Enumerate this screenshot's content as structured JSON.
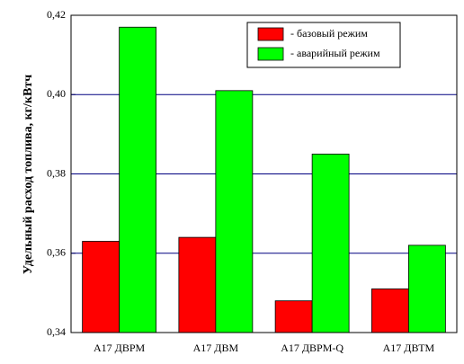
{
  "chart_data": {
    "type": "bar",
    "y_label": "Удельный расход топлива, кг/кВтч",
    "categories": [
      "A17 ДВРМ",
      "A17 ДВМ",
      "A17 ДВРМ-Q",
      "A17 ДВТМ"
    ],
    "series": [
      {
        "name": "- базовый режим",
        "color": "#ff0000",
        "values": [
          0.363,
          0.364,
          0.348,
          0.351
        ]
      },
      {
        "name": "- аварийный режим",
        "color": "#00ff00",
        "values": [
          0.417,
          0.401,
          0.385,
          0.362
        ]
      }
    ],
    "ylim": [
      0.34,
      0.42
    ],
    "yticks": [
      {
        "value": 0.34,
        "label": "0,34"
      },
      {
        "value": 0.36,
        "label": "0,36"
      },
      {
        "value": 0.38,
        "label": "0,38"
      },
      {
        "value": 0.4,
        "label": "0,40"
      },
      {
        "value": 0.42,
        "label": "0,42"
      }
    ],
    "grid": true,
    "grid_color": "#000080",
    "legend": "upper-right"
  }
}
